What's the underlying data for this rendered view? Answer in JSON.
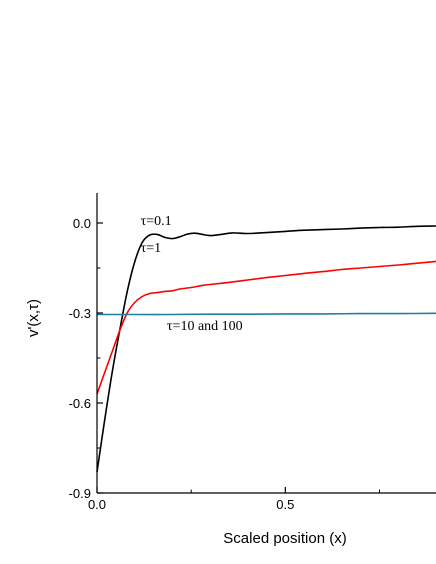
{
  "chart_data": {
    "type": "line",
    "xlabel": "Scaled position (x)",
    "ylabel": "v'(x,τ)",
    "xlim": [
      0.0,
      0.9
    ],
    "ylim": [
      -0.9,
      0.1
    ],
    "x_ticks": [
      {
        "value": 0.0,
        "label": "0.0"
      },
      {
        "value": 0.5,
        "label": "0.5"
      }
    ],
    "y_ticks": [
      {
        "value": 0.0,
        "label": "0.0"
      },
      {
        "value": -0.3,
        "label": "-0.3"
      },
      {
        "value": -0.6,
        "label": "-0.6"
      },
      {
        "value": -0.9,
        "label": "-0.9"
      }
    ],
    "grid": false,
    "series": [
      {
        "name": "τ=0.1",
        "color": "#000000",
        "x": [
          0.0,
          0.02,
          0.04,
          0.06,
          0.08,
          0.1,
          0.12,
          0.14,
          0.16,
          0.18,
          0.2,
          0.22,
          0.24,
          0.26,
          0.28,
          0.3,
          0.33,
          0.36,
          0.4,
          0.45,
          0.5,
          0.55,
          0.6,
          0.65,
          0.7,
          0.75,
          0.8,
          0.85,
          0.9
        ],
        "values": [
          -0.83,
          -0.66,
          -0.5,
          -0.36,
          -0.23,
          -0.13,
          -0.065,
          -0.04,
          -0.038,
          -0.048,
          -0.052,
          -0.046,
          -0.037,
          -0.034,
          -0.038,
          -0.042,
          -0.038,
          -0.033,
          -0.035,
          -0.032,
          -0.028,
          -0.024,
          -0.022,
          -0.02,
          -0.017,
          -0.015,
          -0.014,
          -0.011,
          -0.01
        ]
      },
      {
        "name": "τ=1",
        "color": "#ff0000",
        "x": [
          0.0,
          0.02,
          0.04,
          0.06,
          0.08,
          0.1,
          0.12,
          0.14,
          0.16,
          0.18,
          0.2,
          0.22,
          0.25,
          0.28,
          0.3,
          0.35,
          0.4,
          0.45,
          0.5,
          0.55,
          0.6,
          0.65,
          0.7,
          0.75,
          0.8,
          0.85,
          0.9
        ],
        "values": [
          -0.57,
          -0.5,
          -0.43,
          -0.36,
          -0.3,
          -0.265,
          -0.245,
          -0.235,
          -0.232,
          -0.228,
          -0.226,
          -0.22,
          -0.215,
          -0.208,
          -0.205,
          -0.198,
          -0.19,
          -0.182,
          -0.175,
          -0.168,
          -0.162,
          -0.155,
          -0.15,
          -0.145,
          -0.14,
          -0.134,
          -0.128
        ]
      },
      {
        "name": "τ=10 and 100",
        "color": "#1f7f9f",
        "x": [
          0.0,
          0.1,
          0.2,
          0.3,
          0.4,
          0.5,
          0.6,
          0.7,
          0.8,
          0.9
        ],
        "values": [
          -0.305,
          -0.305,
          -0.305,
          -0.304,
          -0.304,
          -0.303,
          -0.303,
          -0.302,
          -0.302,
          -0.301
        ]
      }
    ],
    "annotations": [
      {
        "text": "τ=0.1",
        "x": 0.19,
        "y": 0.0
      },
      {
        "text": "τ=1",
        "x": 0.19,
        "y": -0.09
      },
      {
        "text": "τ=10 and 100",
        "x": 0.26,
        "y": -0.35
      }
    ]
  }
}
